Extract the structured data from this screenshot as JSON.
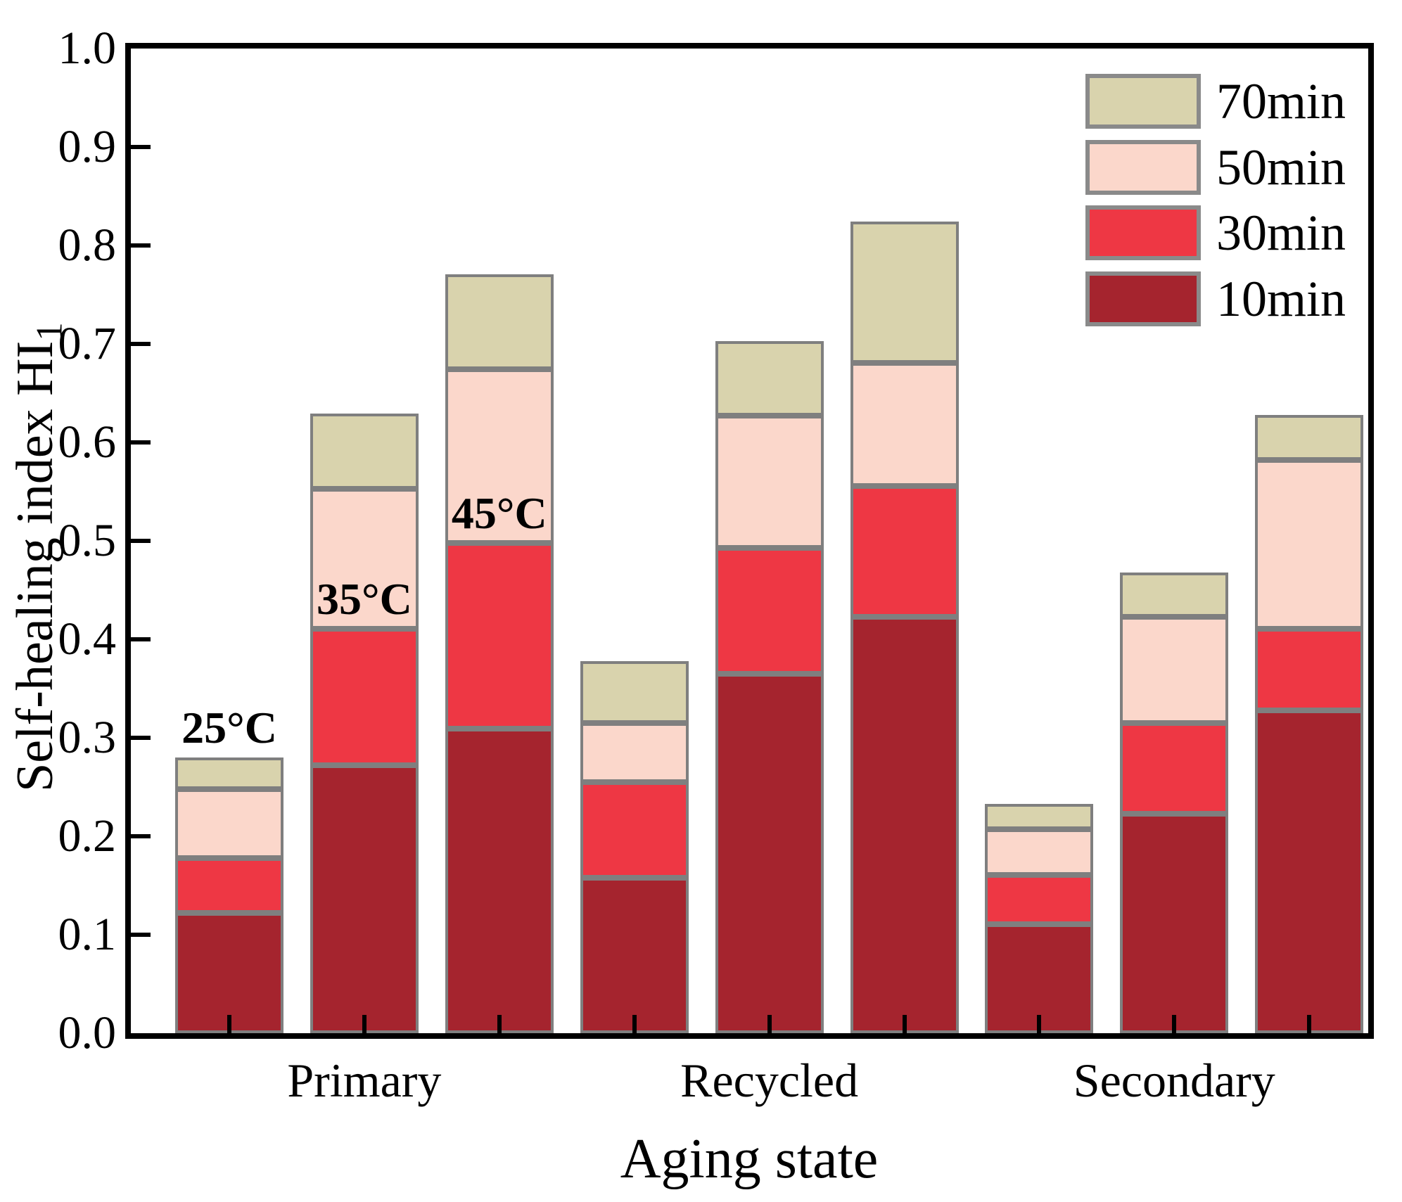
{
  "chart_data": {
    "type": "bar",
    "stacked": true,
    "xlabel": "Aging state",
    "ylabel_main": "Self-healing index HI",
    "ylabel_sub": "1",
    "ylim": [
      0.0,
      1.0
    ],
    "ytick_labels": [
      "0.0",
      "0.1",
      "0.2",
      "0.3",
      "0.4",
      "0.5",
      "0.6",
      "0.7",
      "0.8",
      "0.9",
      "1.0"
    ],
    "grid": false,
    "legend_position": "top-right",
    "legend": [
      {
        "label": "70min",
        "color": "#d9d3ad"
      },
      {
        "label": "50min",
        "color": "#fbd7cb"
      },
      {
        "label": "30min",
        "color": "#ee3744"
      },
      {
        "label": "10min",
        "color": "#a5242e"
      }
    ],
    "series_order_bottom_to_top": [
      "10min",
      "30min",
      "50min",
      "70min"
    ],
    "groups": [
      "Primary",
      "Recycled",
      "Secondary"
    ],
    "temperatures": [
      "25°C",
      "35°C",
      "45°C"
    ],
    "bars": [
      {
        "group": "Primary",
        "temp": "25°C",
        "annotation": {
          "text": "25°C",
          "above": "total"
        },
        "segments": {
          "10min": 0.122,
          "30min": 0.056,
          "50min": 0.07,
          "70min": 0.032
        }
      },
      {
        "group": "Primary",
        "temp": "35°C",
        "annotation": {
          "text": "35°C",
          "above": "30min"
        },
        "segments": {
          "10min": 0.272,
          "30min": 0.139,
          "50min": 0.142,
          "70min": 0.076
        }
      },
      {
        "group": "Primary",
        "temp": "45°C",
        "annotation": {
          "text": "45°C",
          "above": "30min"
        },
        "segments": {
          "10min": 0.309,
          "30min": 0.189,
          "50min": 0.176,
          "70min": 0.097
        }
      },
      {
        "group": "Recycled",
        "temp": "25°C",
        "segments": {
          "10min": 0.158,
          "30min": 0.097,
          "50min": 0.06,
          "70min": 0.063
        }
      },
      {
        "group": "Recycled",
        "temp": "35°C",
        "segments": {
          "10min": 0.365,
          "30min": 0.128,
          "50min": 0.134,
          "70min": 0.076
        }
      },
      {
        "group": "Recycled",
        "temp": "45°C",
        "segments": {
          "10min": 0.423,
          "30min": 0.133,
          "50min": 0.125,
          "70min": 0.143
        }
      },
      {
        "group": "Secondary",
        "temp": "25°C",
        "segments": {
          "10min": 0.111,
          "30min": 0.05,
          "50min": 0.046,
          "70min": 0.026
        }
      },
      {
        "group": "Secondary",
        "temp": "35°C",
        "segments": {
          "10min": 0.223,
          "30min": 0.092,
          "50min": 0.108,
          "70min": 0.045
        }
      },
      {
        "group": "Secondary",
        "temp": "45°C",
        "segments": {
          "10min": 0.328,
          "30min": 0.083,
          "50min": 0.171,
          "70min": 0.046
        }
      }
    ],
    "colors": {
      "10min": "#a5242e",
      "30min": "#ee3744",
      "50min": "#fbd7cb",
      "70min": "#d9d3ad",
      "bar_border": "#7f7f7f",
      "axis": "#000000"
    }
  }
}
